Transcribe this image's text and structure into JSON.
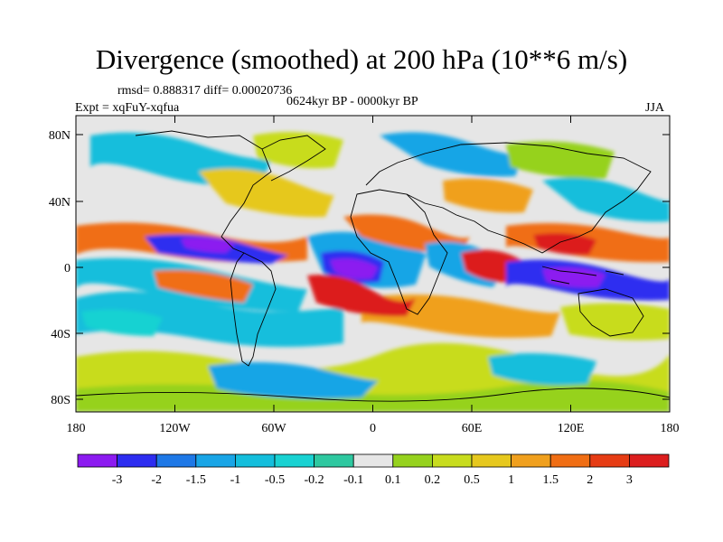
{
  "title": "Divergence (smoothed) at 200 hPa (10**6 m/s)",
  "stats_line": "rmsd= 0.888317  diff= 0.00020736",
  "period": "0624kyr BP - 0000kyr BP",
  "experiment": "Expt = xqFuY-xqfua",
  "season": "JJA",
  "lat_ticks": [
    "80N",
    "40N",
    "0",
    "40S",
    "80S"
  ],
  "lon_ticks": [
    "180",
    "120W",
    "60W",
    "0",
    "60E",
    "120E",
    "180"
  ],
  "legend_labels": [
    "-3",
    "-2",
    "-1.5",
    "-1",
    "-0.5",
    "-0.2",
    "-0.1",
    "0.1",
    "0.2",
    "0.5",
    "1",
    "1.5",
    "2",
    "3"
  ],
  "legend_colors": [
    "#8c1bf0",
    "#2d2df0",
    "#1e78e6",
    "#19a5e6",
    "#14bedc",
    "#19d2d2",
    "#2ec8a0",
    "#e6e6e6",
    "#96d21e",
    "#c8dc1e",
    "#e6c81e",
    "#f0a01e",
    "#f06e14",
    "#e63c14",
    "#dc1e1e"
  ],
  "colors": {
    "missing": "#e6e6e6",
    "coast": "#000000"
  }
}
